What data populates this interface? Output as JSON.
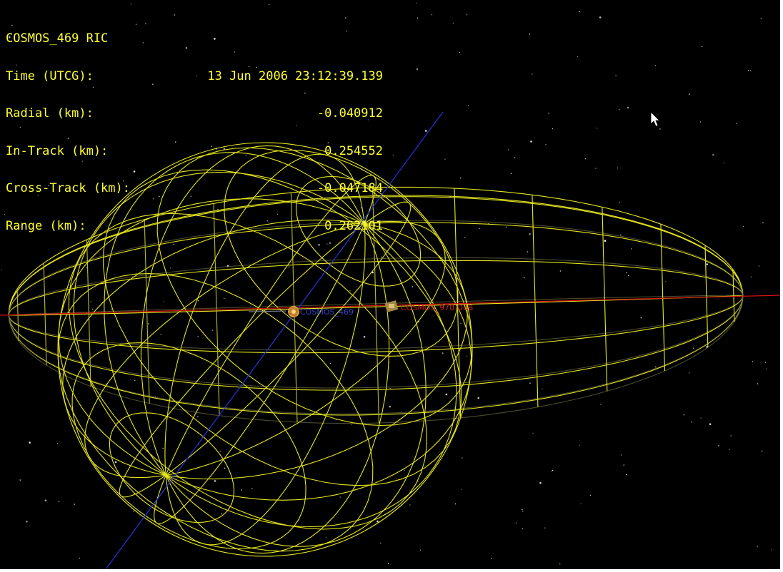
{
  "hud": {
    "title": "COSMOS_469 RIC",
    "rows": [
      {
        "label": "Time (UTCG):",
        "value": "13 Jun 2006 23:12:39.139"
      },
      {
        "label": "Radial (km):",
        "value": "-0.040912"
      },
      {
        "label": "In-Track (km):",
        "value": "0.254552"
      },
      {
        "label": "Cross-Track (km):",
        "value": "-0.047184"
      },
      {
        "label": "Range (km):",
        "value": "0.262101"
      }
    ]
  },
  "satellites": {
    "primary": {
      "label": "COSMOS_469"
    },
    "secondary": {
      "label": "COSMOS_970 DEB"
    }
  },
  "colors": {
    "background": "#000000",
    "hud_text": "#ffff33",
    "wireframe": "#e6e61e",
    "in_track_axis": "#dd1111",
    "cross_track_axis": "#2233dd",
    "primary_label": "#3344cc",
    "secondary_label": "#cc2222",
    "stars": "#ffffff"
  },
  "icons": {
    "cursor": "mouse-pointer-icon",
    "primary": "satellite-icon",
    "secondary": "satellite-debris-icon"
  }
}
